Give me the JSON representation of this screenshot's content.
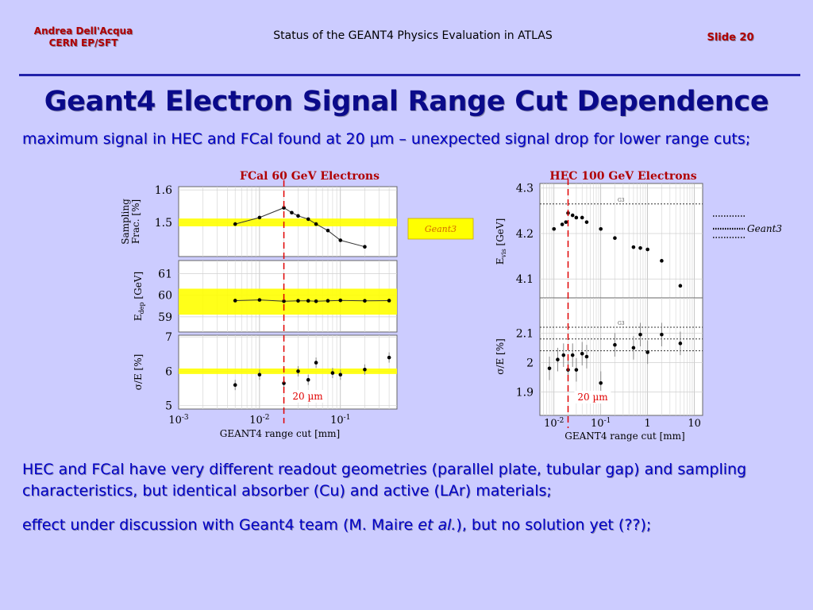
{
  "header": {
    "author_line1": "Andrea Dell'Acqua",
    "author_line2": "CERN EP/SFT",
    "title": "Status of the GEANT4 Physics Evaluation in ATLAS",
    "slide": "Slide 20"
  },
  "slide_title": "Geant4 Electron Signal Range Cut Dependence",
  "intro_text": "maximum signal in HEC and FCal found at 20 µm – unexpected signal drop for lower range cuts;",
  "bottom_text_1": "HEC and FCal have very different readout geometries (parallel plate, tubular gap) and sampling characteristics, but identical absorber (Cu) and active (LAr) materials;",
  "bottom_text_2_pre": "effect under discussion with Geant4 team (M. Maire ",
  "bottom_text_2_em": "et al.",
  "bottom_text_2_post": "), but no solution yet (??);",
  "colors": {
    "background": "#ccccff",
    "title": "#0a0a8a",
    "body_text": "#0000c8",
    "red": "#b00000",
    "geant3_band": "#ffff00"
  },
  "chart_data": [
    {
      "type": "scatter",
      "title": "FCal 60 GeV Electrons",
      "xlabel": "GEANT4 range cut [mm]",
      "xscale": "log",
      "xlim": [
        0.001,
        0.5
      ],
      "x_ticks": [
        {
          "base": "10",
          "exp": "-3",
          "value": 0.001
        },
        {
          "base": "10",
          "exp": "-2",
          "value": 0.01
        },
        {
          "base": "10",
          "exp": "-1",
          "value": 0.1
        }
      ],
      "cut_line": {
        "x": 0.02,
        "label": "20 µm"
      },
      "legend": {
        "label": "Geant3"
      },
      "panels": [
        {
          "ylabel_1": "Sampling",
          "ylabel_2": "Frac. [%]",
          "ylim": [
            1.395,
            1.61
          ],
          "y_ticks": [
            {
              "label": "1.6",
              "value": 1.6
            },
            {
              "label": "1.5",
              "value": 1.5
            }
          ],
          "band": [
            1.488,
            1.512
          ],
          "points": [
            {
              "x": 0.005,
              "y": 1.495
            },
            {
              "x": 0.01,
              "y": 1.515
            },
            {
              "x": 0.02,
              "y": 1.545
            },
            {
              "x": 0.025,
              "y": 1.53
            },
            {
              "x": 0.03,
              "y": 1.52
            },
            {
              "x": 0.04,
              "y": 1.51
            },
            {
              "x": 0.05,
              "y": 1.495
            },
            {
              "x": 0.07,
              "y": 1.475
            },
            {
              "x": 0.1,
              "y": 1.445
            },
            {
              "x": 0.2,
              "y": 1.425
            }
          ]
        },
        {
          "ylabel_main": "E",
          "ylabel_sub": "dep",
          "ylabel_rest": " [GeV]",
          "ylim": [
            58.3,
            61.6
          ],
          "y_ticks": [
            {
              "label": "61",
              "value": 61
            },
            {
              "label": "60",
              "value": 60
            },
            {
              "label": "59",
              "value": 59
            }
          ],
          "band": [
            59.1,
            60.3
          ],
          "points": [
            {
              "x": 0.005,
              "y": 59.75
            },
            {
              "x": 0.01,
              "y": 59.78
            },
            {
              "x": 0.02,
              "y": 59.72
            },
            {
              "x": 0.03,
              "y": 59.74
            },
            {
              "x": 0.04,
              "y": 59.74
            },
            {
              "x": 0.05,
              "y": 59.72
            },
            {
              "x": 0.07,
              "y": 59.74
            },
            {
              "x": 0.1,
              "y": 59.76
            },
            {
              "x": 0.2,
              "y": 59.74
            },
            {
              "x": 0.4,
              "y": 59.75
            }
          ]
        },
        {
          "ylabel": "σ/E [%]",
          "ylim": [
            4.9,
            7.05
          ],
          "y_ticks": [
            {
              "label": "7",
              "value": 7
            },
            {
              "label": "6",
              "value": 6
            },
            {
              "label": "5",
              "value": 5
            }
          ],
          "band": [
            5.92,
            6.08
          ],
          "points": [
            {
              "x": 0.005,
              "y": 5.6,
              "err": 0.15
            },
            {
              "x": 0.01,
              "y": 5.9,
              "err": 0.15
            },
            {
              "x": 0.02,
              "y": 5.65,
              "err": 0.15
            },
            {
              "x": 0.03,
              "y": 6.0,
              "err": 0.15
            },
            {
              "x": 0.04,
              "y": 5.75,
              "err": 0.15
            },
            {
              "x": 0.05,
              "y": 6.25,
              "err": 0.15
            },
            {
              "x": 0.08,
              "y": 5.95,
              "err": 0.15
            },
            {
              "x": 0.1,
              "y": 5.9,
              "err": 0.15
            },
            {
              "x": 0.2,
              "y": 6.05,
              "err": 0.15
            },
            {
              "x": 0.4,
              "y": 6.4,
              "err": 0.15
            }
          ]
        }
      ]
    },
    {
      "type": "scatter",
      "title": "HEC 100 GeV Electrons",
      "xlabel": "GEANT4 range cut [mm]",
      "xscale": "log",
      "xlim": [
        0.005,
        15
      ],
      "x_ticks": [
        {
          "base": "10",
          "exp": "-2",
          "value": 0.01
        },
        {
          "base": "10",
          "exp": "-1",
          "value": 0.1
        },
        {
          "base": "1",
          "exp": "",
          "value": 1
        },
        {
          "base": "10",
          "exp": "",
          "value": 10
        }
      ],
      "cut_line": {
        "x": 0.02,
        "label": "20 µm"
      },
      "legend": {
        "label": "Geant3"
      },
      "panels": [
        {
          "ylabel_main": "E",
          "ylabel_sub": "vis",
          "ylabel_rest": " [GeV]",
          "ylim": [
            4.055,
            4.31
          ],
          "y_ticks": [
            {
              "label": "4.3",
              "value": 4.3
            },
            {
              "label": "4.2",
              "value": 4.2
            },
            {
              "label": "4.1",
              "value": 4.1
            }
          ],
          "g3_line": 4.265,
          "g3_label": "G3",
          "points": [
            {
              "x": 0.01,
              "y": 4.21
            },
            {
              "x": 0.015,
              "y": 4.22
            },
            {
              "x": 0.018,
              "y": 4.225
            },
            {
              "x": 0.02,
              "y": 4.245
            },
            {
              "x": 0.025,
              "y": 4.24
            },
            {
              "x": 0.03,
              "y": 4.235
            },
            {
              "x": 0.04,
              "y": 4.235
            },
            {
              "x": 0.05,
              "y": 4.225
            },
            {
              "x": 0.1,
              "y": 4.21
            },
            {
              "x": 0.2,
              "y": 4.19
            },
            {
              "x": 0.5,
              "y": 4.17
            },
            {
              "x": 0.7,
              "y": 4.168
            },
            {
              "x": 1,
              "y": 4.165
            },
            {
              "x": 2,
              "y": 4.14
            },
            {
              "x": 5,
              "y": 4.085
            }
          ]
        },
        {
          "ylabel": "σ/E [%]",
          "ylim": [
            1.82,
            2.22
          ],
          "y_ticks": [
            {
              "label": "2.1",
              "value": 2.1
            },
            {
              "label": "2",
              "value": 2
            },
            {
              "label": "1.9",
              "value": 1.9
            }
          ],
          "g3_lines": [
            2.12,
            2.08,
            2.04
          ],
          "g3_label": "G3",
          "points": [
            {
              "x": 0.008,
              "y": 1.98,
              "err": 0.04
            },
            {
              "x": 0.012,
              "y": 2.01,
              "err": 0.04
            },
            {
              "x": 0.016,
              "y": 2.025,
              "err": 0.04
            },
            {
              "x": 0.02,
              "y": 1.975,
              "err": 0.04
            },
            {
              "x": 0.025,
              "y": 2.025,
              "err": 0.04
            },
            {
              "x": 0.03,
              "y": 1.975,
              "err": 0.04
            },
            {
              "x": 0.04,
              "y": 2.03,
              "err": 0.04
            },
            {
              "x": 0.05,
              "y": 2.02,
              "err": 0.04
            },
            {
              "x": 0.1,
              "y": 1.93,
              "err": 0.04
            },
            {
              "x": 0.2,
              "y": 2.06,
              "err": 0.04
            },
            {
              "x": 0.5,
              "y": 2.05,
              "err": 0.04
            },
            {
              "x": 0.7,
              "y": 2.095,
              "err": 0.04
            },
            {
              "x": 1,
              "y": 2.035,
              "err": 0.04
            },
            {
              "x": 2,
              "y": 2.095,
              "err": 0.04
            },
            {
              "x": 5,
              "y": 2.065,
              "err": 0.04
            }
          ]
        }
      ]
    }
  ]
}
